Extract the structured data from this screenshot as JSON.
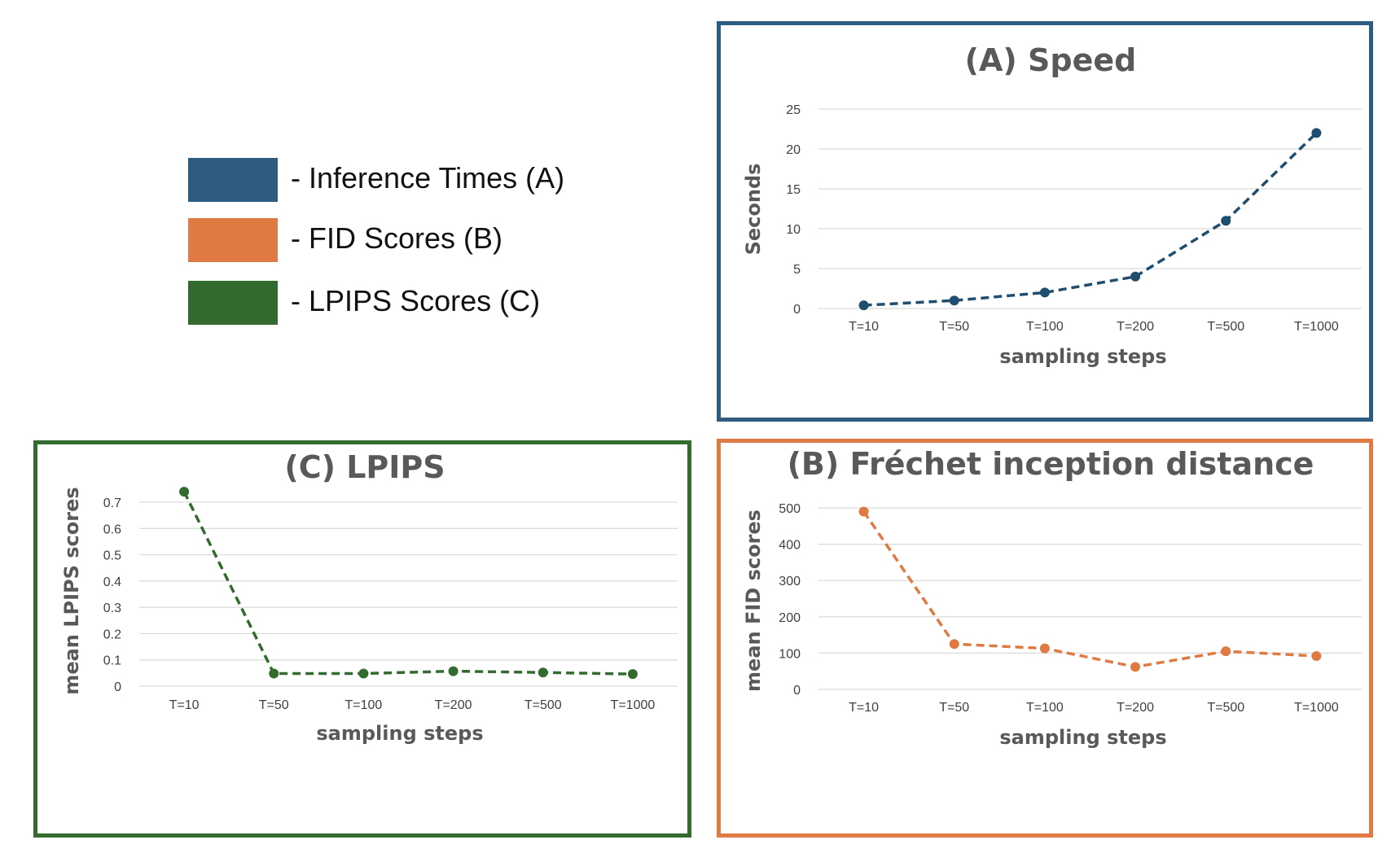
{
  "legend": {
    "items": [
      {
        "color": "#2e5c80",
        "label": "- Inference Times (A)"
      },
      {
        "color": "#df7a42",
        "label": "- FID Scores (B)"
      },
      {
        "color": "#336b2e",
        "label": "- LPIPS Scores (C)"
      }
    ]
  },
  "chart_data": [
    {
      "id": "A",
      "type": "line",
      "title": "(A) Speed",
      "xlabel": "sampling steps",
      "ylabel": "Seconds",
      "categories": [
        "T=10",
        "T=50",
        "T=100",
        "T=200",
        "T=500",
        "T=1000"
      ],
      "values": [
        0.4,
        1.0,
        2.0,
        4.0,
        11.0,
        22.0
      ],
      "ylim": [
        0,
        25
      ],
      "yticks": [
        0,
        5,
        10,
        15,
        20,
        25
      ],
      "yticklabels": [
        "0",
        "5",
        "10",
        "15",
        "20",
        "25"
      ],
      "color": "#1f4e6e",
      "frame_color": "#2e5c80",
      "line_style": "dashed",
      "grid": true
    },
    {
      "id": "B",
      "type": "line",
      "title": "(B) Fréchet inception distance",
      "xlabel": "sampling steps",
      "ylabel": "mean FID scores",
      "categories": [
        "T=10",
        "T=50",
        "T=100",
        "T=200",
        "T=500",
        "T=1000"
      ],
      "values": [
        490,
        125,
        113,
        62,
        105,
        92
      ],
      "ylim": [
        0,
        500
      ],
      "yticks": [
        0,
        100,
        200,
        300,
        400,
        500
      ],
      "yticklabels": [
        "0",
        "100",
        "200",
        "300",
        "400",
        "500"
      ],
      "color": "#df7a42",
      "frame_color": "#df7a42",
      "line_style": "dashed",
      "grid": true
    },
    {
      "id": "C",
      "type": "line",
      "title": "(C) LPIPS",
      "xlabel": "sampling steps",
      "ylabel": "mean LPIPS scores",
      "categories": [
        "T=10",
        "T=50",
        "T=100",
        "T=200",
        "T=500",
        "T=1000"
      ],
      "values": [
        0.74,
        0.048,
        0.048,
        0.057,
        0.052,
        0.046
      ],
      "ylim": [
        0,
        0.7
      ],
      "yticks": [
        0,
        0.1,
        0.2,
        0.3,
        0.4,
        0.5,
        0.6,
        0.7
      ],
      "yticklabels": [
        "0",
        "0.1",
        "0.2",
        "0.3",
        "0.4",
        "0.5",
        "0.6",
        "0.7"
      ],
      "color": "#336b2e",
      "frame_color": "#336b2e",
      "line_style": "dashed",
      "grid": true
    }
  ]
}
